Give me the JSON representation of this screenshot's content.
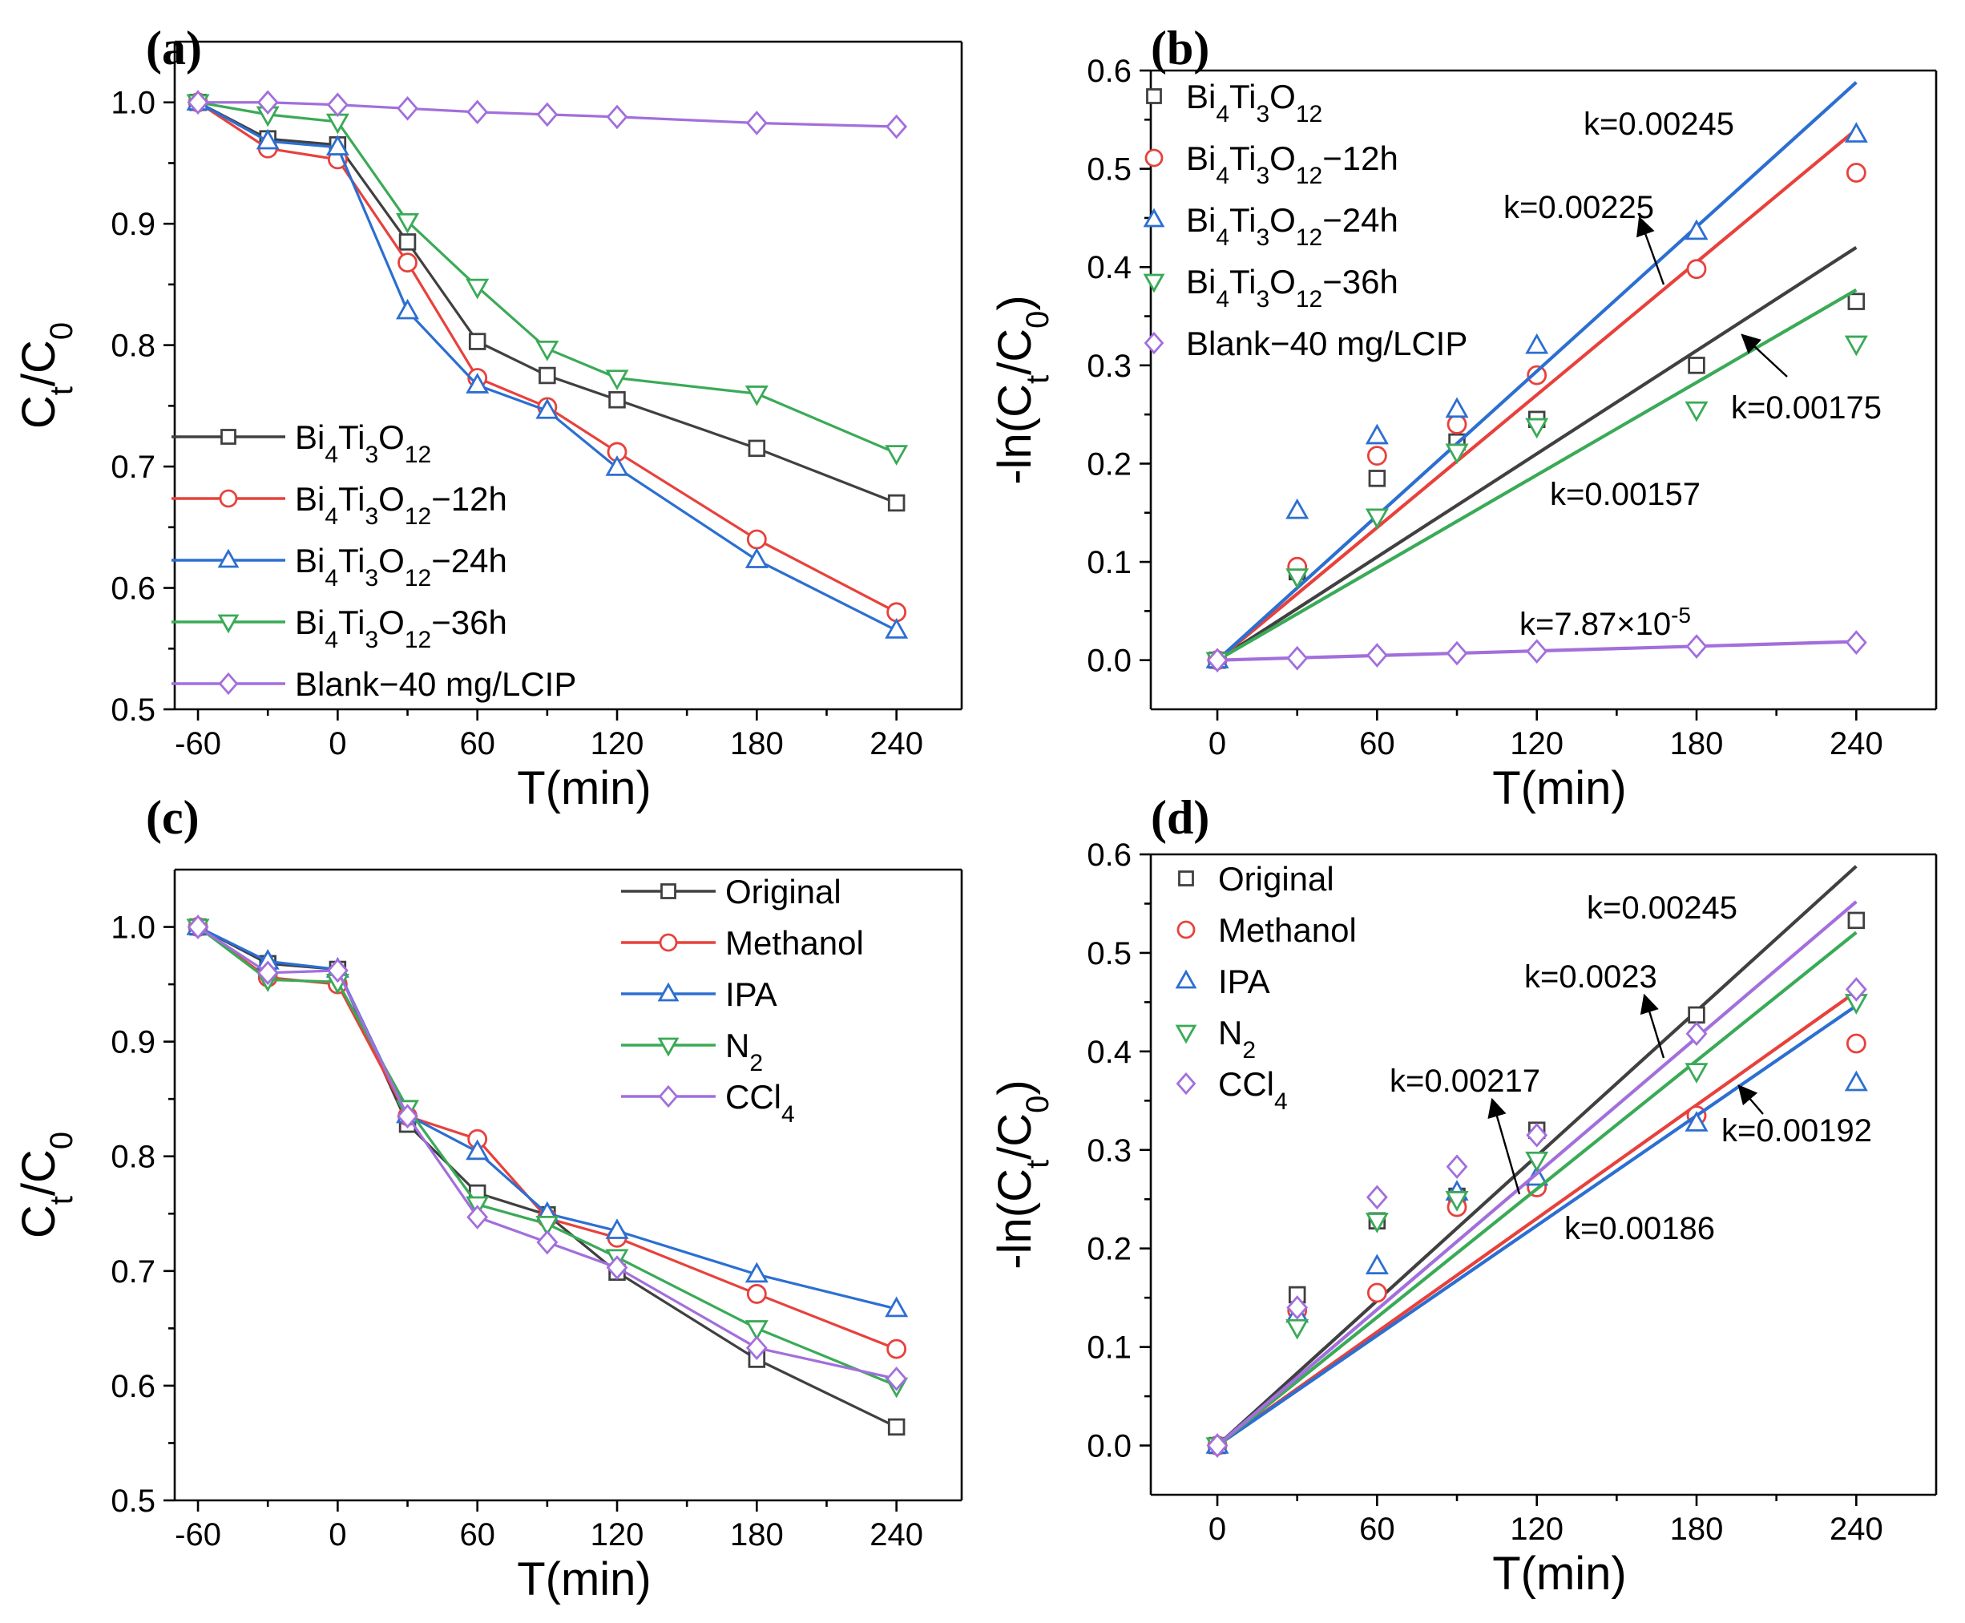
{
  "chart_data": [
    {
      "panel": "(a)",
      "type": "line",
      "xlabel": "T(min)",
      "ylabel": "C_t/C_0",
      "xlim": [
        -70,
        268
      ],
      "ylim": [
        0.5,
        1.05
      ],
      "xticks": [
        -60,
        0,
        60,
        120,
        180,
        240
      ],
      "xtick_labels": [
        "-60",
        "0",
        "60",
        "120",
        "180",
        "240"
      ],
      "yticks": [
        0.5,
        0.6,
        0.7,
        0.8,
        0.9,
        1.0
      ],
      "ytick_labels": [
        "0.5",
        "0.6",
        "0.7",
        "0.8",
        "0.9",
        "1.0"
      ],
      "legend": "bottom-left",
      "x": [
        -60,
        -30,
        0,
        30,
        60,
        90,
        120,
        180,
        240
      ],
      "series": [
        {
          "name": "Bi4Ti3O12",
          "label_parts": [
            "Bi",
            "4",
            "Ti",
            "3",
            "O",
            "12",
            ""
          ],
          "color": "#404040",
          "marker": "square",
          "values": [
            1.0,
            0.97,
            0.965,
            0.885,
            0.803,
            0.775,
            0.755,
            0.715,
            0.67
          ]
        },
        {
          "name": "Bi4Ti3O12-12h",
          "label_parts": [
            "Bi",
            "4",
            "Ti",
            "3",
            "O",
            "12",
            "−12h"
          ],
          "color": "#e8413c",
          "marker": "circle",
          "values": [
            1.0,
            0.962,
            0.953,
            0.868,
            0.773,
            0.749,
            0.712,
            0.64,
            0.58
          ]
        },
        {
          "name": "Bi4Ti3O12-24h",
          "label_parts": [
            "Bi",
            "4",
            "Ti",
            "3",
            "O",
            "12",
            "−24h"
          ],
          "color": "#2c6fd1",
          "marker": "triangle-up",
          "values": [
            1.0,
            0.968,
            0.963,
            0.828,
            0.767,
            0.746,
            0.699,
            0.623,
            0.565
          ]
        },
        {
          "name": "Bi4Ti3O12-36h",
          "label_parts": [
            "Bi",
            "4",
            "Ti",
            "3",
            "O",
            "12",
            "−36h"
          ],
          "color": "#3aaa57",
          "marker": "triangle-down",
          "values": [
            1.0,
            0.99,
            0.984,
            0.902,
            0.848,
            0.797,
            0.773,
            0.76,
            0.711
          ]
        },
        {
          "name": "Blank-40 mg/LCIP",
          "label_parts": [
            "Blank−40 mg/LCIP"
          ],
          "color": "#a26fdc",
          "marker": "diamond",
          "values": [
            1.0,
            1.0,
            0.998,
            0.995,
            0.992,
            0.99,
            0.988,
            0.983,
            0.98
          ]
        }
      ]
    },
    {
      "panel": "(b)",
      "type": "scatter",
      "xlabel": "T(min)",
      "ylabel": "-ln(C_t/C_0)",
      "xlim": [
        -25,
        270
      ],
      "ylim": [
        -0.05,
        0.6
      ],
      "xticks": [
        0,
        60,
        120,
        180,
        240
      ],
      "xtick_labels": [
        "0",
        "60",
        "120",
        "180",
        "240"
      ],
      "yticks": [
        0.0,
        0.1,
        0.2,
        0.3,
        0.4,
        0.5,
        0.6
      ],
      "ytick_labels": [
        "0.0",
        "0.1",
        "0.2",
        "0.3",
        "0.4",
        "0.5",
        "0.6"
      ],
      "legend": "top-left",
      "x": [
        0,
        30,
        60,
        90,
        120,
        180,
        240
      ],
      "series": [
        {
          "name": "Bi4Ti3O12",
          "label_parts": [
            "Bi",
            "4",
            "Ti",
            "3",
            "O",
            "12",
            ""
          ],
          "color": "#404040",
          "marker": "square",
          "slope": 0.00175,
          "values": [
            0.0,
            0.09,
            0.185,
            0.222,
            0.245,
            0.3,
            0.365
          ]
        },
        {
          "name": "Bi4Ti3O12-12h",
          "label_parts": [
            "Bi",
            "4",
            "Ti",
            "3",
            "O",
            "12",
            "−12h"
          ],
          "color": "#e8413c",
          "marker": "circle",
          "slope": 0.00225,
          "values": [
            0.0,
            0.095,
            0.208,
            0.24,
            0.29,
            0.398,
            0.496
          ]
        },
        {
          "name": "Bi4Ti3O12-24h",
          "label_parts": [
            "Bi",
            "4",
            "Ti",
            "3",
            "O",
            "12",
            "−24h"
          ],
          "color": "#2c6fd1",
          "marker": "triangle-up",
          "slope": 0.00245,
          "values": [
            0.0,
            0.152,
            0.228,
            0.255,
            0.32,
            0.436,
            0.535
          ]
        },
        {
          "name": "Bi4Ti3O12-36h",
          "label_parts": [
            "Bi",
            "4",
            "Ti",
            "3",
            "O",
            "12",
            "−36h"
          ],
          "color": "#3aaa57",
          "marker": "triangle-down",
          "slope": 0.00157,
          "values": [
            0.0,
            0.085,
            0.146,
            0.212,
            0.238,
            0.255,
            0.322
          ]
        },
        {
          "name": "Blank-40 mg/LCIP",
          "label_parts": [
            "Blank−40 mg/LCIP"
          ],
          "color": "#a26fdc",
          "marker": "diamond",
          "slope": 7.87e-05,
          "values": [
            0.0,
            0.002,
            0.005,
            0.007,
            0.009,
            0.014,
            0.018
          ]
        }
      ],
      "annotations": [
        {
          "text": "k=0.00245"
        },
        {
          "text": "k=0.00225"
        },
        {
          "text": "k=0.00175"
        },
        {
          "text": "k=0.00157"
        },
        {
          "text": "k=7.87×10",
          "sup": "-5"
        }
      ]
    },
    {
      "panel": "(c)",
      "type": "line",
      "xlabel": "T(min)",
      "ylabel": "C_t/C_0",
      "xlim": [
        -70,
        268
      ],
      "ylim": [
        0.5,
        1.05
      ],
      "xticks": [
        -60,
        0,
        60,
        120,
        180,
        240
      ],
      "xtick_labels": [
        "-60",
        "0",
        "60",
        "120",
        "180",
        "240"
      ],
      "yticks": [
        0.5,
        0.6,
        0.7,
        0.8,
        0.9,
        1.0
      ],
      "ytick_labels": [
        "0.5",
        "0.6",
        "0.7",
        "0.8",
        "0.9",
        "1.0"
      ],
      "legend": "top-right",
      "x": [
        -60,
        -30,
        0,
        30,
        60,
        90,
        120,
        180,
        240
      ],
      "series": [
        {
          "name": "Original",
          "label_parts": [
            "Original"
          ],
          "color": "#404040",
          "marker": "square",
          "values": [
            1.0,
            0.968,
            0.963,
            0.828,
            0.768,
            0.749,
            0.699,
            0.623,
            0.564
          ]
        },
        {
          "name": "Methanol",
          "label_parts": [
            "Methanol"
          ],
          "color": "#e8413c",
          "marker": "circle",
          "values": [
            1.0,
            0.956,
            0.95,
            0.835,
            0.815,
            0.746,
            0.729,
            0.68,
            0.632
          ]
        },
        {
          "name": "IPA",
          "label_parts": [
            "IPA"
          ],
          "color": "#2c6fd1",
          "marker": "triangle-up",
          "values": [
            1.0,
            0.97,
            0.963,
            0.836,
            0.804,
            0.75,
            0.735,
            0.697,
            0.667
          ]
        },
        {
          "name": "N2",
          "label_parts": [
            "N",
            "2",
            "",
            "",
            "",
            "",
            ""
          ],
          "color": "#3aaa57",
          "marker": "triangle-down",
          "values": [
            1.0,
            0.954,
            0.952,
            0.842,
            0.758,
            0.741,
            0.712,
            0.65,
            0.6
          ]
        },
        {
          "name": "CCl4",
          "label_parts": [
            "CCl",
            "4",
            "",
            "",
            "",
            "",
            ""
          ],
          "color": "#a26fdc",
          "marker": "diamond",
          "values": [
            1.0,
            0.96,
            0.962,
            0.835,
            0.747,
            0.725,
            0.703,
            0.633,
            0.606
          ]
        }
      ]
    },
    {
      "panel": "(d)",
      "type": "scatter",
      "xlabel": "T(min)",
      "ylabel": "-ln(C_t/C_0)",
      "xlim": [
        -25,
        270
      ],
      "ylim": [
        -0.05,
        0.6
      ],
      "xticks": [
        0,
        60,
        120,
        180,
        240
      ],
      "xtick_labels": [
        "0",
        "60",
        "120",
        "180",
        "240"
      ],
      "yticks": [
        0.0,
        0.1,
        0.2,
        0.3,
        0.4,
        0.5,
        0.6
      ],
      "ytick_labels": [
        "0.0",
        "0.1",
        "0.2",
        "0.3",
        "0.4",
        "0.5",
        "0.6"
      ],
      "legend": "top-left",
      "x": [
        0,
        30,
        60,
        90,
        120,
        180,
        240
      ],
      "series": [
        {
          "name": "Original",
          "label_parts": [
            "Original"
          ],
          "color": "#404040",
          "marker": "square",
          "slope": 0.00245,
          "values": [
            0.0,
            0.153,
            0.228,
            0.253,
            0.32,
            0.437,
            0.533
          ]
        },
        {
          "name": "Methanol",
          "label_parts": [
            "Methanol"
          ],
          "color": "#e8413c",
          "marker": "circle",
          "slope": 0.00192,
          "values": [
            0.0,
            0.137,
            0.155,
            0.242,
            0.262,
            0.335,
            0.408
          ]
        },
        {
          "name": "IPA",
          "label_parts": [
            "IPA"
          ],
          "color": "#2c6fd1",
          "marker": "triangle-up",
          "slope": 0.00186,
          "values": [
            0.0,
            0.133,
            0.182,
            0.257,
            0.272,
            0.327,
            0.368
          ]
        },
        {
          "name": "N2",
          "label_parts": [
            "N",
            "2",
            "",
            "",
            "",
            "",
            ""
          ],
          "color": "#3aaa57",
          "marker": "triangle-down",
          "slope": 0.00217,
          "values": [
            0.0,
            0.12,
            0.228,
            0.25,
            0.29,
            0.38,
            0.45
          ]
        },
        {
          "name": "CCl4",
          "label_parts": [
            "CCl",
            "4",
            "",
            "",
            "",
            "",
            ""
          ],
          "color": "#a26fdc",
          "marker": "diamond",
          "slope": 0.0023,
          "values": [
            0.0,
            0.14,
            0.252,
            0.283,
            0.315,
            0.418,
            0.463
          ]
        }
      ],
      "annotations": [
        {
          "text": "k=0.00245"
        },
        {
          "text": "k=0.0023"
        },
        {
          "text": "k=0.00217"
        },
        {
          "text": "k=0.00192"
        },
        {
          "text": "k=0.00186"
        }
      ]
    }
  ]
}
